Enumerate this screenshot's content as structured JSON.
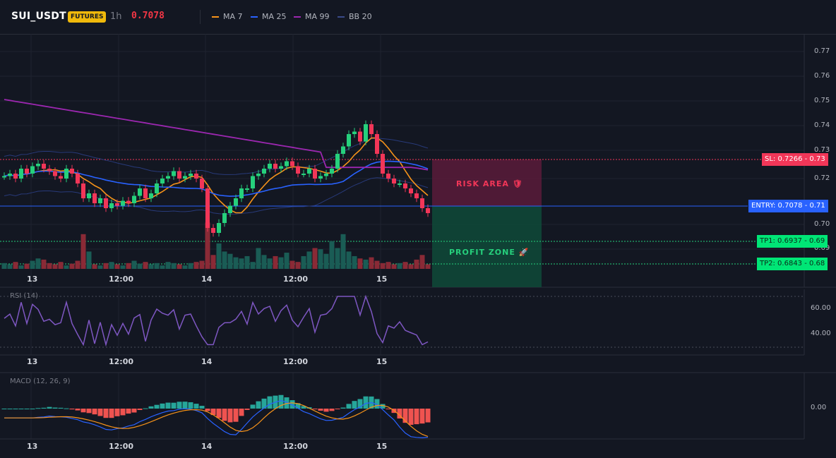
{
  "header": {
    "symbol": "SUI_USDT",
    "badge": "FUTURES",
    "timeframe": "1h",
    "price": "0.7078",
    "indicators": [
      {
        "label": "MA 7",
        "color": "#f7931a"
      },
      {
        "label": "MA 25",
        "color": "#2962ff"
      },
      {
        "label": "MA 99",
        "color": "#9c27b0"
      },
      {
        "label": "BB 20",
        "color": "#283a7a"
      }
    ]
  },
  "price_axis": [
    "0.77",
    "0.76",
    "0.75",
    "0.74",
    "0.73",
    "0.72",
    "0.71",
    "0.70",
    "0.69"
  ],
  "time_axis": [
    "13",
    "12:00",
    "14",
    "12:00",
    "15"
  ],
  "levels": {
    "sl": "SL: 0.7266 - 0.73",
    "entry": "ENTRY: 0.7078 - 0.71",
    "tp1": "TP1: 0.6937 - 0.69",
    "tp2": "TP2: 0.6843 - 0.68"
  },
  "zones": {
    "risk": "RISK AREA 🛡",
    "profit": "PROFIT ZONE 🚀"
  },
  "rsi": {
    "label": "RSI (14)",
    "ticks": [
      "60.00",
      "40.00"
    ]
  },
  "macd": {
    "label": "MACD (12, 26, 9)",
    "ticks": [
      "0.00"
    ]
  },
  "colors": {
    "up": "#26d07c",
    "down": "#f23658",
    "vol_up": "#1a5c55",
    "vol_down": "#8a2a36"
  }
}
